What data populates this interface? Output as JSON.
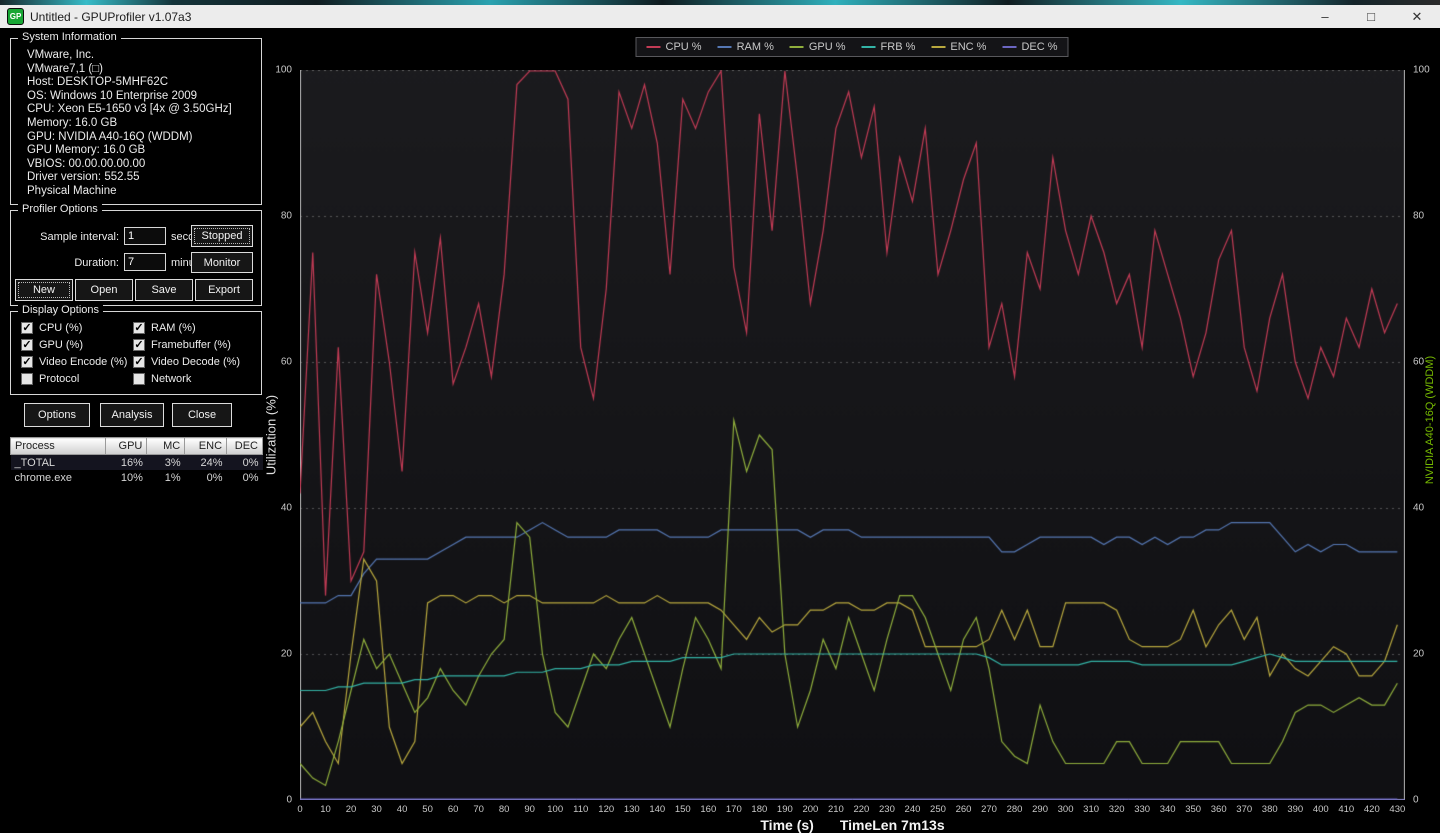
{
  "window": {
    "title": "Untitled - GPUProfiler v1.07a3",
    "icon_text": "GP",
    "controls": {
      "minimize": "–",
      "maximize": "□",
      "close": "✕"
    }
  },
  "system_information": {
    "title": "System Information",
    "lines": [
      "VMware, Inc.",
      "VMware7,1 (□)",
      "Host: DESKTOP-5MHF62C",
      "OS: Windows 10 Enterprise 2009",
      "CPU: Xeon E5-1650 v3 [4x @ 3.50GHz]",
      "Memory: 16.0 GB",
      "GPU: NVIDIA A40-16Q (WDDM)",
      "GPU Memory: 16.0 GB",
      "VBIOS: 00.00.00.00.00",
      "Driver version: 552.55",
      "Physical Machine"
    ]
  },
  "profiler_options": {
    "title": "Profiler Options",
    "sample_interval_label": "Sample interval:",
    "sample_interval_value": "1",
    "sample_interval_unit": "second",
    "duration_label": "Duration:",
    "duration_value": "7",
    "duration_unit": "minutes",
    "stopped_button": "Stopped",
    "monitor_button": "Monitor",
    "new_button": "New",
    "open_button": "Open",
    "save_button": "Save",
    "export_button": "Export"
  },
  "display_options": {
    "title": "Display Options",
    "items": [
      {
        "label": "CPU (%)",
        "checked": true
      },
      {
        "label": "RAM (%)",
        "checked": true
      },
      {
        "label": "GPU (%)",
        "checked": true
      },
      {
        "label": "Framebuffer (%)",
        "checked": true
      },
      {
        "label": "Video Encode (%)",
        "checked": true
      },
      {
        "label": "Video Decode (%)",
        "checked": true
      },
      {
        "label": "Protocol",
        "checked": false
      },
      {
        "label": "Network",
        "checked": false
      }
    ]
  },
  "action_buttons": {
    "options": "Options",
    "analysis": "Analysis",
    "close": "Close"
  },
  "process_table": {
    "headers": [
      "Process",
      "GPU",
      "MC",
      "ENC",
      "DEC"
    ],
    "rows": [
      {
        "process": "_TOTAL",
        "gpu": "16%",
        "mc": "3%",
        "enc": "24%",
        "dec": "0%"
      },
      {
        "process": "chrome.exe",
        "gpu": "10%",
        "mc": "1%",
        "enc": "0%",
        "dec": "0%"
      }
    ]
  },
  "chart_data": {
    "type": "line",
    "xlabel": "Time (s)",
    "timelen_label": "TimeLen 7m13s",
    "ylabel_left": "Utilization (%)",
    "ylabel_right": "NVIDIA A40-16Q (WDDM)",
    "ylabel_right_color": "#76b900",
    "xlim": [
      0,
      433
    ],
    "ylim": [
      0,
      100
    ],
    "grid": "dotted-horizontal",
    "legend_position": "top-center",
    "y_ticks": [
      0,
      20,
      40,
      60,
      80,
      100
    ],
    "x_ticks": [
      0,
      10,
      20,
      30,
      40,
      50,
      60,
      70,
      80,
      90,
      100,
      110,
      120,
      130,
      140,
      150,
      160,
      170,
      180,
      190,
      200,
      210,
      220,
      230,
      240,
      250,
      260,
      270,
      280,
      290,
      300,
      310,
      320,
      330,
      340,
      350,
      360,
      370,
      380,
      390,
      400,
      410,
      420,
      430
    ],
    "x": [
      0,
      5,
      10,
      15,
      20,
      25,
      30,
      35,
      40,
      45,
      50,
      55,
      60,
      65,
      70,
      75,
      80,
      85,
      90,
      95,
      100,
      105,
      110,
      115,
      120,
      125,
      130,
      135,
      140,
      145,
      150,
      155,
      160,
      165,
      170,
      175,
      180,
      185,
      190,
      195,
      200,
      205,
      210,
      215,
      220,
      225,
      230,
      235,
      240,
      245,
      250,
      255,
      260,
      265,
      270,
      275,
      280,
      285,
      290,
      295,
      300,
      305,
      310,
      315,
      320,
      325,
      330,
      335,
      340,
      345,
      350,
      355,
      360,
      365,
      370,
      375,
      380,
      385,
      390,
      395,
      400,
      405,
      410,
      415,
      420,
      425,
      430
    ],
    "series": [
      {
        "name": "CPU %",
        "color": "#c23b55",
        "values": [
          42,
          75,
          28,
          62,
          30,
          34,
          72,
          60,
          45,
          75,
          64,
          77,
          57,
          62,
          68,
          58,
          72,
          98,
          100,
          100,
          100,
          96,
          62,
          55,
          70,
          97,
          92,
          98,
          90,
          72,
          96,
          92,
          97,
          100,
          73,
          64,
          94,
          78,
          100,
          85,
          68,
          78,
          92,
          97,
          88,
          95,
          75,
          88,
          82,
          92,
          72,
          78,
          85,
          90,
          62,
          68,
          58,
          75,
          70,
          88,
          78,
          72,
          80,
          75,
          68,
          72,
          62,
          78,
          72,
          66,
          58,
          64,
          74,
          78,
          62,
          56,
          66,
          72,
          60,
          55,
          62,
          58,
          66,
          62,
          70,
          64,
          68
        ]
      },
      {
        "name": "RAM %",
        "color": "#5577b3",
        "values": [
          27,
          27,
          27,
          28,
          28,
          31,
          33,
          33,
          33,
          33,
          33,
          34,
          35,
          36,
          36,
          36,
          36,
          36,
          37,
          38,
          37,
          36,
          36,
          36,
          36,
          37,
          37,
          37,
          37,
          36,
          36,
          36,
          36,
          37,
          37,
          37,
          37,
          37,
          37,
          37,
          36,
          37,
          37,
          37,
          36,
          36,
          36,
          36,
          36,
          36,
          36,
          36,
          36,
          36,
          36,
          34,
          34,
          35,
          36,
          36,
          36,
          36,
          36,
          35,
          36,
          36,
          35,
          36,
          35,
          36,
          36,
          37,
          37,
          38,
          38,
          38,
          38,
          36,
          34,
          35,
          34,
          35,
          35,
          34,
          34,
          34,
          34
        ]
      },
      {
        "name": "GPU %",
        "color": "#8fae3c",
        "values": [
          5,
          3,
          2,
          8,
          15,
          22,
          18,
          20,
          16,
          12,
          14,
          18,
          15,
          13,
          17,
          20,
          22,
          38,
          36,
          20,
          12,
          10,
          15,
          20,
          18,
          22,
          25,
          20,
          15,
          10,
          18,
          25,
          22,
          18,
          52,
          45,
          50,
          48,
          20,
          10,
          15,
          22,
          18,
          25,
          20,
          15,
          22,
          28,
          28,
          25,
          20,
          15,
          22,
          25,
          18,
          8,
          6,
          5,
          13,
          8,
          5,
          5,
          5,
          5,
          8,
          8,
          5,
          5,
          5,
          8,
          8,
          8,
          8,
          5,
          5,
          5,
          5,
          8,
          12,
          13,
          13,
          12,
          13,
          14,
          13,
          13,
          16
        ]
      },
      {
        "name": "FRB %",
        "color": "#33b3a6",
        "values": [
          15,
          15,
          15,
          15.5,
          15.5,
          16,
          16,
          16,
          16,
          16.5,
          16.5,
          17,
          17,
          17,
          17,
          17,
          17,
          17.5,
          17.5,
          17.5,
          18,
          18,
          18,
          18.5,
          18.5,
          18.5,
          19,
          19,
          19,
          19,
          19.5,
          19.5,
          19.5,
          19.5,
          20,
          20,
          20,
          20,
          20,
          20,
          20,
          20,
          20,
          20,
          20,
          20,
          20,
          20,
          20,
          20,
          20,
          20,
          20,
          20,
          19.5,
          18.5,
          18.5,
          18.5,
          18.5,
          18.5,
          18.5,
          18.5,
          19,
          19,
          19,
          19,
          18.5,
          18.5,
          18.5,
          18.5,
          18.5,
          18.5,
          18.5,
          18.5,
          19,
          19.5,
          20,
          19.5,
          19,
          19,
          19,
          19,
          19,
          19,
          19,
          19,
          19
        ]
      },
      {
        "name": "ENC %",
        "color": "#b8a83e",
        "values": [
          10,
          12,
          8,
          5,
          20,
          33,
          30,
          10,
          5,
          8,
          27,
          28,
          28,
          27,
          28,
          28,
          27,
          28,
          28,
          27,
          27,
          27,
          27,
          27,
          28,
          27,
          27,
          27,
          28,
          27,
          27,
          27,
          27,
          26,
          24,
          22,
          25,
          23,
          24,
          24,
          26,
          26,
          27,
          27,
          26,
          26,
          27,
          27,
          26,
          21,
          21,
          21,
          21,
          21,
          22,
          26,
          22,
          26,
          21,
          21,
          27,
          27,
          27,
          27,
          26,
          22,
          21,
          21,
          21,
          22,
          26,
          21,
          24,
          26,
          22,
          25,
          17,
          20,
          18,
          17,
          19,
          21,
          20,
          17,
          17,
          19,
          24
        ]
      },
      {
        "name": "DEC %",
        "color": "#6b66c2",
        "values": [
          0,
          0,
          0,
          0,
          0,
          0,
          0,
          0,
          0,
          0,
          0,
          0,
          0,
          0,
          0,
          0,
          0,
          0,
          0,
          0,
          0,
          0,
          0,
          0,
          0,
          0,
          0,
          0,
          0,
          0,
          0,
          0,
          0,
          0,
          0,
          0,
          0,
          0,
          0,
          0,
          0,
          0,
          0,
          0,
          0,
          0,
          0,
          0,
          0,
          0,
          0,
          0,
          0,
          0,
          0,
          0,
          0,
          0,
          0,
          0,
          0,
          0,
          0,
          0,
          0,
          0,
          0,
          0,
          0,
          0,
          0,
          0,
          0,
          0,
          0,
          0,
          0,
          0,
          0,
          0,
          0,
          0,
          0,
          0,
          0,
          0,
          0
        ]
      }
    ]
  },
  "colors": {
    "titlebar_bg": "#ececec",
    "panel_border": "#d6d6d6",
    "chart_bg_top": "#1b1b1e",
    "chart_bg_bottom": "#101013",
    "nvidia_green": "#76b900"
  }
}
